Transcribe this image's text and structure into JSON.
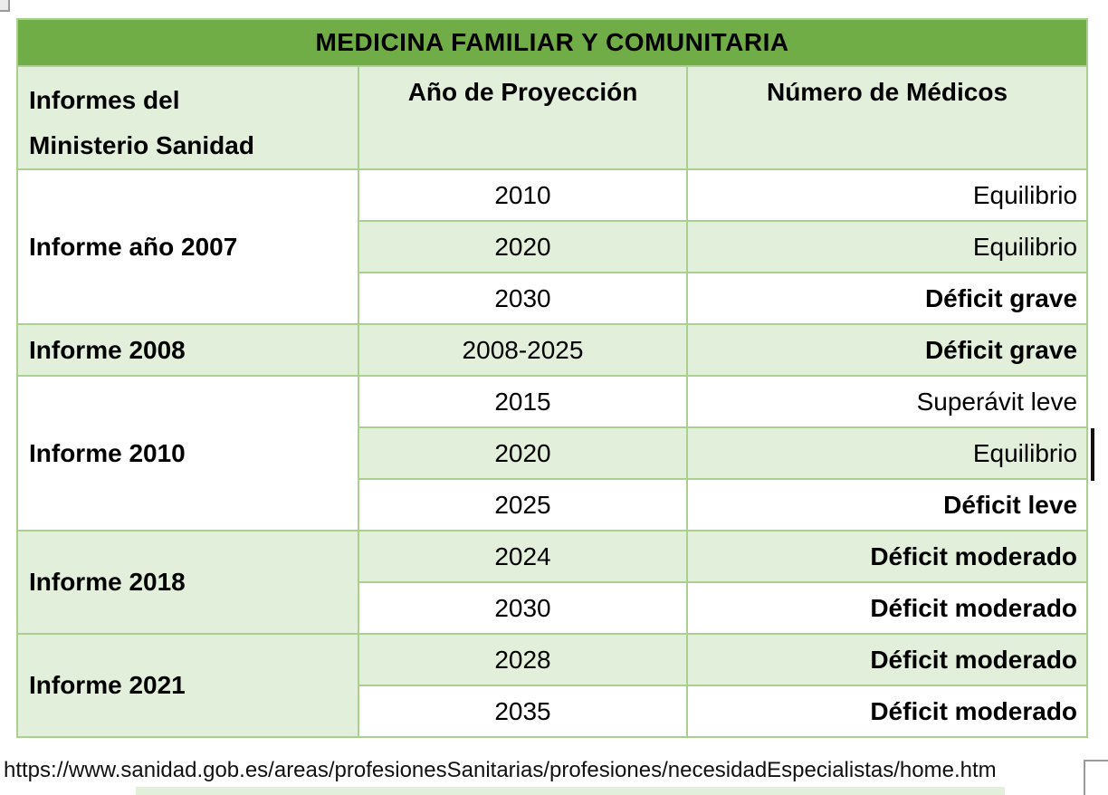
{
  "colors": {
    "title_bar_green": "#70AD47",
    "light_green": "#E2EFDA",
    "border_green": "#A9D08E"
  },
  "table": {
    "title": "MEDICINA FAMILIAR Y COMUNITARIA",
    "headers": {
      "reports_line1": "Informes del",
      "reports_line2": "Ministerio Sanidad",
      "year": "Año de Proyección",
      "doctors": "Número de Médicos"
    },
    "sections": [
      {
        "report": "Informe año 2007",
        "rows": [
          {
            "year": "2010",
            "status": "Equilibrio",
            "bold": false
          },
          {
            "year": "2020",
            "status": "Equilibrio",
            "bold": false
          },
          {
            "year": "2030",
            "status": "Déficit grave",
            "bold": true
          }
        ]
      },
      {
        "report": "Informe 2008",
        "rows": [
          {
            "year": "2008-2025",
            "status": "Déficit grave",
            "bold": true
          }
        ]
      },
      {
        "report": "Informe 2010",
        "rows": [
          {
            "year": "2015",
            "status": "Superávit leve",
            "bold": false
          },
          {
            "year": "2020",
            "status": "Equilibrio",
            "bold": false
          },
          {
            "year": "2025",
            "status": "Déficit leve",
            "bold": true
          }
        ]
      },
      {
        "report": "Informe 2018",
        "rows": [
          {
            "year": "2024",
            "status": "Déficit moderado",
            "bold": true
          },
          {
            "year": "2030",
            "status": "Déficit moderado",
            "bold": true
          }
        ]
      },
      {
        "report": "Informe 2021",
        "rows": [
          {
            "year": "2028",
            "status": "Déficit moderado",
            "bold": true
          },
          {
            "year": "2035",
            "status": "Déficit moderado",
            "bold": true
          }
        ]
      }
    ]
  },
  "footer": {
    "url": "https://www.sanidad.gob.es/areas/profesionesSanitarias/profesiones/necesidadEspecialistas/home.htm"
  }
}
